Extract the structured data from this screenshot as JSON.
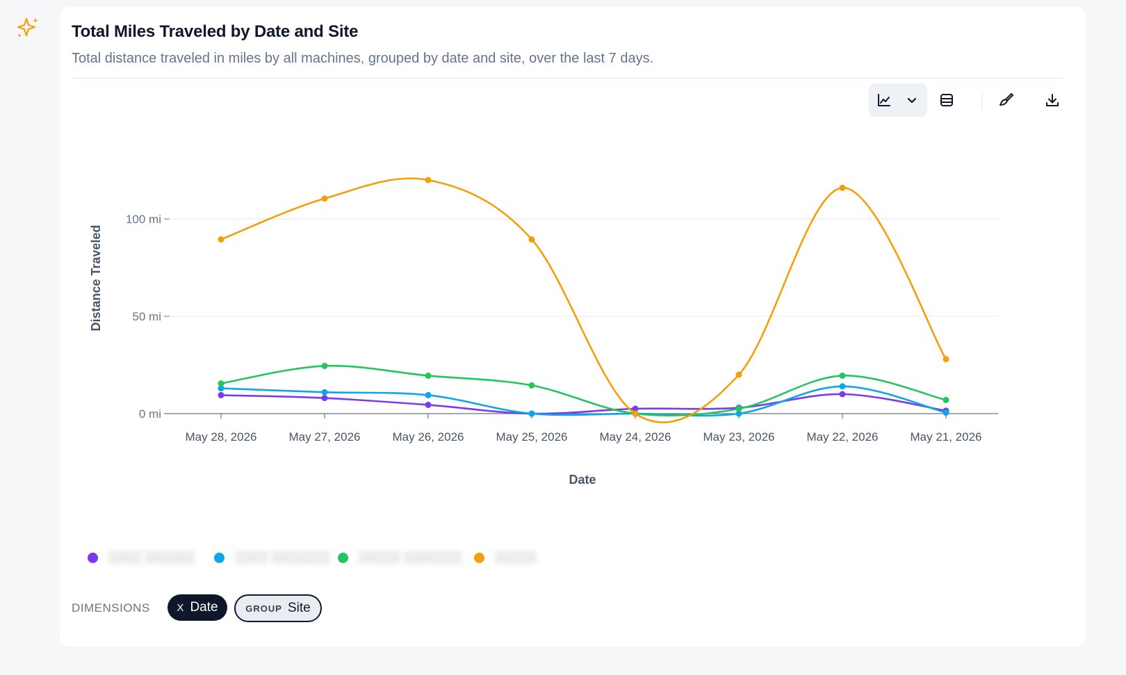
{
  "header": {
    "title": "Total Miles Traveled by Date and Site",
    "subtitle": "Total distance traveled in miles by all machines, grouped by date and site, over the last 7 days."
  },
  "toolbar": {
    "buttons": [
      {
        "icon": "line-chart-icon"
      },
      {
        "icon": "chevron-down-icon"
      },
      {
        "icon": "table-icon"
      },
      {
        "icon": "paintbrush-icon"
      },
      {
        "icon": "download-icon"
      }
    ]
  },
  "dimensions": {
    "label": "DIMENSIONS",
    "x_key": "X",
    "x_value": "Date",
    "group_key": "GROUP",
    "group_value": "Site"
  },
  "colors": {
    "accent_sparkle": "#f59e0b",
    "series": [
      "#7c3aed",
      "#0ea5e9",
      "#22c55e",
      "#f59e0b"
    ]
  },
  "chart_data": {
    "type": "line",
    "xlabel": "Date",
    "ylabel": "Distance Traveled",
    "categories": [
      "May 28, 2026",
      "May 27, 2026",
      "May 26, 2026",
      "May 25, 2026",
      "May 24, 2026",
      "May 23, 2026",
      "May 22, 2026",
      "May 21, 2026"
    ],
    "y_ticks": [
      {
        "value": 0,
        "label": "0 mi"
      },
      {
        "value": 50,
        "label": "50 mi"
      },
      {
        "value": 100,
        "label": "100 mi"
      }
    ],
    "ylim": [
      0,
      120
    ],
    "grid": true,
    "legend_position": "bottom-left",
    "legend_labels_obscured": true,
    "series": [
      {
        "color": "#7c3aed",
        "values": [
          9.5,
          8,
          4.5,
          0,
          2.5,
          3,
          10,
          1.5
        ]
      },
      {
        "color": "#0ea5e9",
        "values": [
          13,
          11,
          9.5,
          0,
          0,
          0,
          14,
          0.5
        ]
      },
      {
        "color": "#22c55e",
        "values": [
          15.5,
          24.5,
          19.5,
          14.5,
          0,
          2.5,
          19.5,
          7
        ]
      },
      {
        "color": "#f59e0b",
        "values": [
          89.5,
          110.5,
          120,
          89.5,
          0,
          20,
          116,
          28
        ]
      }
    ]
  }
}
